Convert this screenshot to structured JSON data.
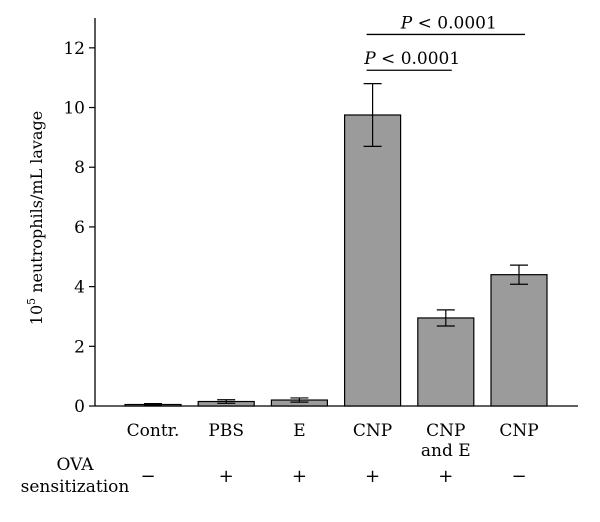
{
  "chart_data": {
    "type": "bar",
    "ylabel": "neutrophils/mL lavage",
    "ylabel_prefix": "10",
    "ylabel_exponent": "5",
    "ylim": [
      0,
      13
    ],
    "yticks": [
      "0",
      "2",
      "4",
      "6",
      "8",
      "10",
      "12"
    ],
    "categories": [
      "Contr.",
      "PBS",
      "E",
      "CNP",
      "CNP and E",
      "CNP"
    ],
    "category_lines": [
      [
        "Contr."
      ],
      [
        "PBS"
      ],
      [
        "E"
      ],
      [
        "CNP"
      ],
      [
        "CNP",
        "and E"
      ],
      [
        "CNP"
      ]
    ],
    "values": [
      0.05,
      0.15,
      0.2,
      9.75,
      2.95,
      4.4
    ],
    "errors": [
      0.03,
      0.06,
      0.07,
      1.05,
      0.27,
      0.32
    ],
    "bar_color": "#9b9b9b",
    "row_label_lines": [
      "OVA",
      "sensitization"
    ],
    "ova_sensitization": [
      "−",
      "+",
      "+",
      "+",
      "+",
      "−"
    ],
    "significance": [
      {
        "from": 3,
        "to": 4,
        "y": 11.25,
        "label_italic": "P",
        "label": " < 0.0001"
      },
      {
        "from": 3,
        "to": 5,
        "y": 12.45,
        "label_italic": "P",
        "label": " < 0.0001"
      }
    ]
  }
}
